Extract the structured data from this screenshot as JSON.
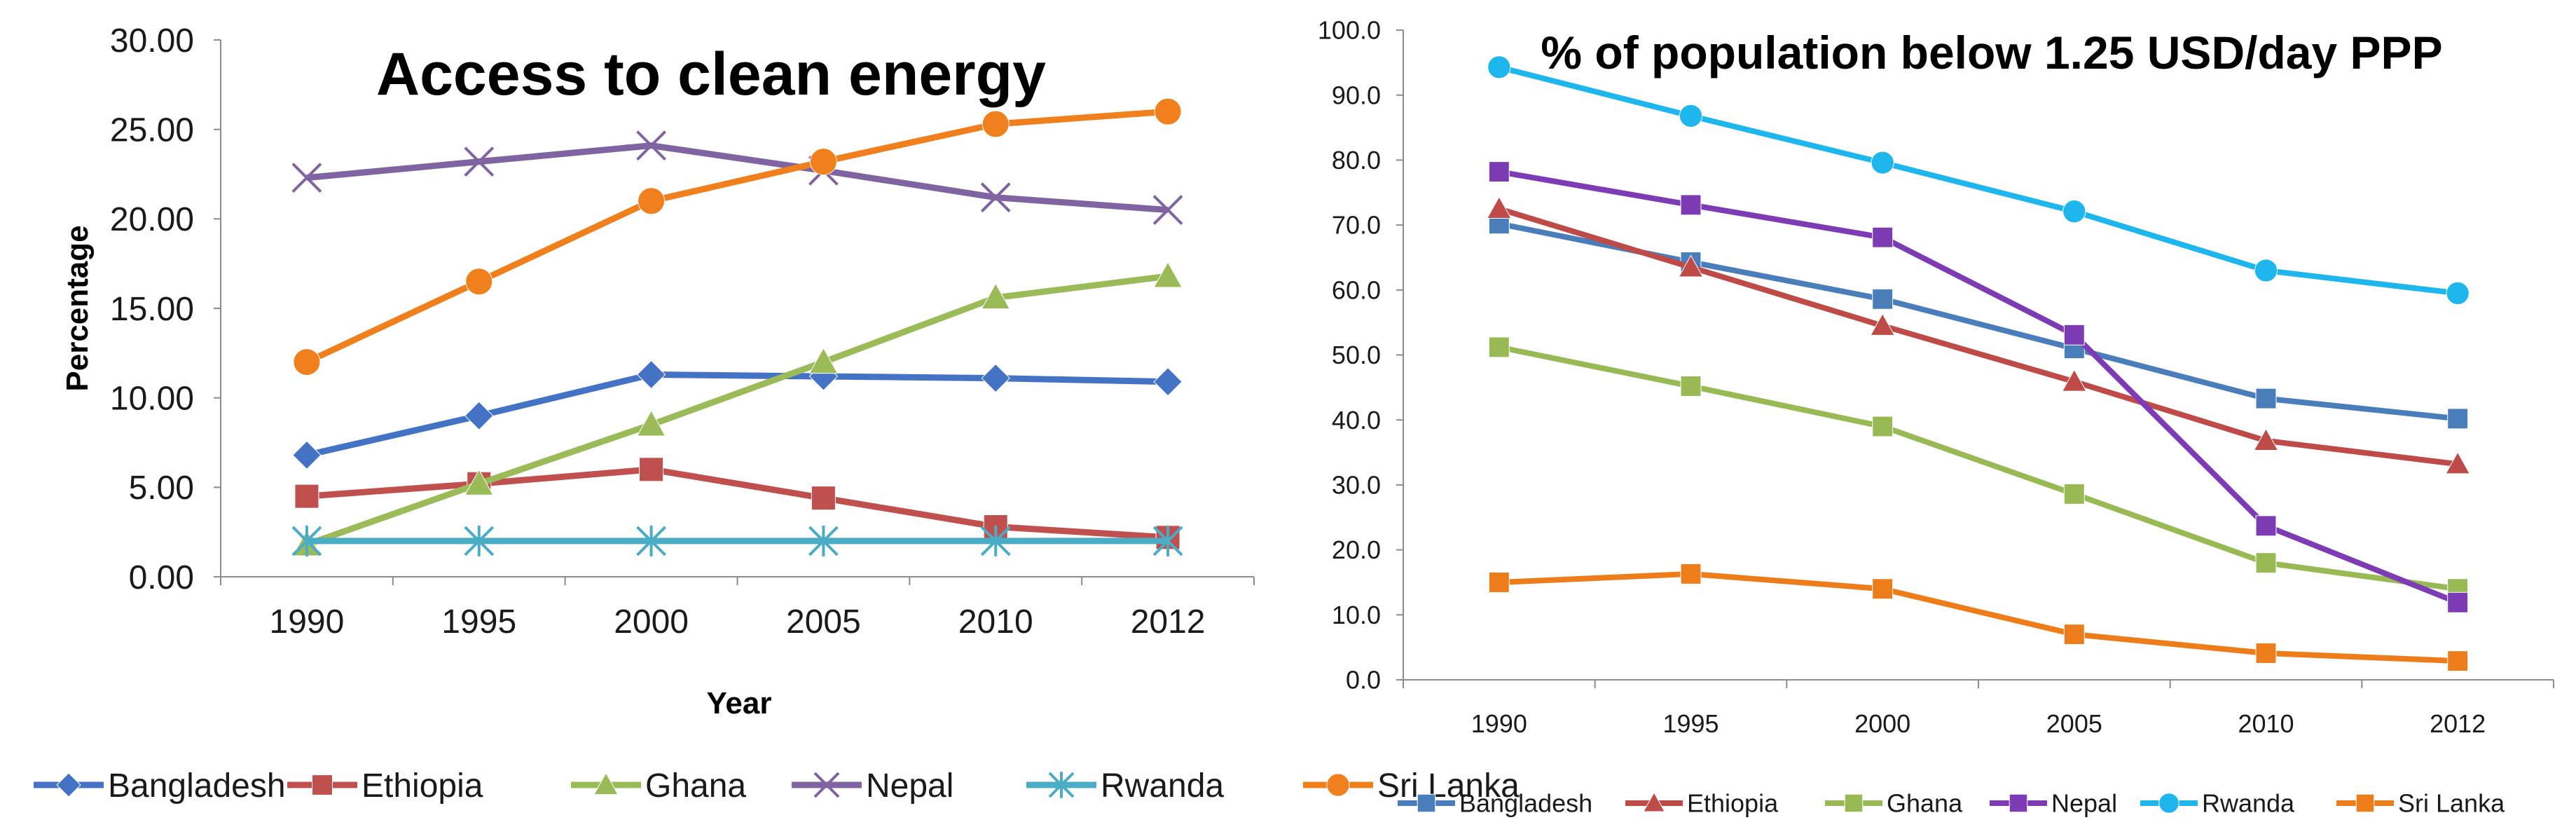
{
  "chart_data": [
    {
      "type": "line",
      "title": "Access to clean energy",
      "xlabel": "Year",
      "ylabel": "Percentage",
      "categories": [
        "1990",
        "1995",
        "2000",
        "2005",
        "2010",
        "2012"
      ],
      "y_ticks": [
        "0.00",
        "5.00",
        "10.00",
        "15.00",
        "20.00",
        "25.00",
        "30.00"
      ],
      "ylim": [
        0,
        30
      ],
      "legend_position": "bottom",
      "series": [
        {
          "name": "Bangladesh",
          "marker": "diamond",
          "color": "#4472C4",
          "values": [
            6.8,
            9.0,
            11.3,
            11.2,
            11.1,
            10.9
          ]
        },
        {
          "name": "Ethiopia",
          "marker": "square",
          "color": "#C0504D",
          "values": [
            4.5,
            5.2,
            6.0,
            4.4,
            2.8,
            2.2
          ]
        },
        {
          "name": "Ghana",
          "marker": "triangle",
          "color": "#9BBB59",
          "values": [
            1.8,
            5.2,
            8.5,
            12.0,
            15.6,
            16.8
          ]
        },
        {
          "name": "Nepal",
          "marker": "x",
          "color": "#8064A2",
          "values": [
            22.3,
            23.2,
            24.1,
            22.7,
            21.2,
            20.5
          ]
        },
        {
          "name": "Rwanda",
          "marker": "star",
          "color": "#4BACC6",
          "values": [
            2.0,
            2.0,
            2.0,
            2.0,
            2.0,
            2.0
          ]
        },
        {
          "name": "Sri Lanka",
          "marker": "circle",
          "color": "#F07F1E",
          "values": [
            12.0,
            16.5,
            21.0,
            23.2,
            25.3,
            26.0
          ]
        }
      ]
    },
    {
      "type": "line",
      "title": "% of population below 1.25 USD/day PPP",
      "xlabel": "",
      "ylabel": "",
      "categories": [
        "1990",
        "1995",
        "2000",
        "2005",
        "2010",
        "2012"
      ],
      "y_ticks": [
        "0.0",
        "10.0",
        "20.0",
        "30.0",
        "40.0",
        "50.0",
        "60.0",
        "70.0",
        "80.0",
        "90.0",
        "100.0"
      ],
      "ylim": [
        0,
        100
      ],
      "legend_position": "bottom",
      "series": [
        {
          "name": "Bangladesh",
          "marker": "square",
          "color": "#4A7EBB",
          "values": [
            70.2,
            64.3,
            58.6,
            51.0,
            43.3,
            40.2
          ]
        },
        {
          "name": "Ethiopia",
          "marker": "triangle",
          "color": "#BE4B48",
          "values": [
            72.5,
            63.5,
            54.5,
            45.9,
            36.8,
            33.2
          ]
        },
        {
          "name": "Ghana",
          "marker": "square",
          "color": "#98B954",
          "values": [
            51.2,
            45.2,
            39.0,
            28.6,
            18.0,
            14.0
          ]
        },
        {
          "name": "Nepal",
          "marker": "square",
          "color": "#7D3CB3",
          "values": [
            78.2,
            73.1,
            68.1,
            53.1,
            23.7,
            11.9
          ]
        },
        {
          "name": "Rwanda",
          "marker": "circle",
          "color": "#1FB6EE",
          "values": [
            94.3,
            86.8,
            79.6,
            72.1,
            63.0,
            59.5
          ]
        },
        {
          "name": "Sri Lanka",
          "marker": "square",
          "color": "#ED7D1A",
          "values": [
            15.0,
            16.3,
            14.0,
            7.0,
            4.1,
            2.9
          ]
        }
      ]
    }
  ]
}
